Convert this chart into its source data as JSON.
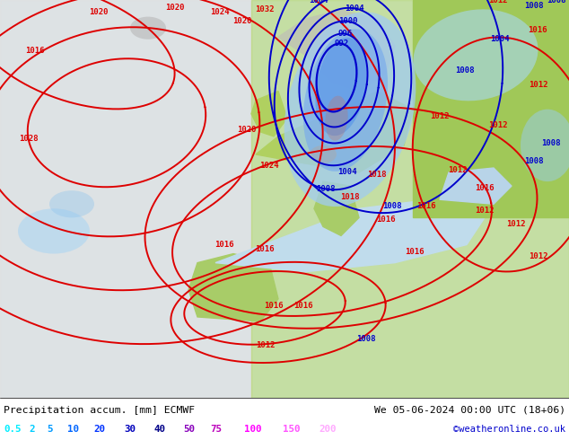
{
  "title_left": "Precipitation accum. [mm] ECMWF",
  "title_right": "We 05-06-2024 00:00 UTC (18+06)",
  "credit": "©weatheronline.co.uk",
  "legend_values": [
    "0.5",
    "2",
    "5",
    "10",
    "20",
    "30",
    "40",
    "50",
    "75",
    "100",
    "150",
    "200"
  ],
  "legend_colors": [
    "#00eeff",
    "#00ccff",
    "#0099ff",
    "#0066ff",
    "#0033ff",
    "#0000bb",
    "#000088",
    "#8800bb",
    "#bb00bb",
    "#ff00ff",
    "#ff55ff",
    "#ffaaff"
  ],
  "bottom_bar_bg": "#ffffff",
  "figsize": [
    6.34,
    4.9
  ],
  "dpi": 100,
  "bottom_text_color": "#000000",
  "credit_color": "#0000cc",
  "map_ocean_color": "#d8eef8",
  "map_land_color_west": "#e8e8e8",
  "map_land_color_east": "#c8e89c",
  "map_precip_light": "#a8d8f8",
  "map_precip_mid": "#78b8f0",
  "map_precip_dark": "#4898e8",
  "isobar_red": "#dd0000",
  "isobar_blue": "#0000cc",
  "isobar_lw": 1.4,
  "isobar_fontsize": 6.5
}
